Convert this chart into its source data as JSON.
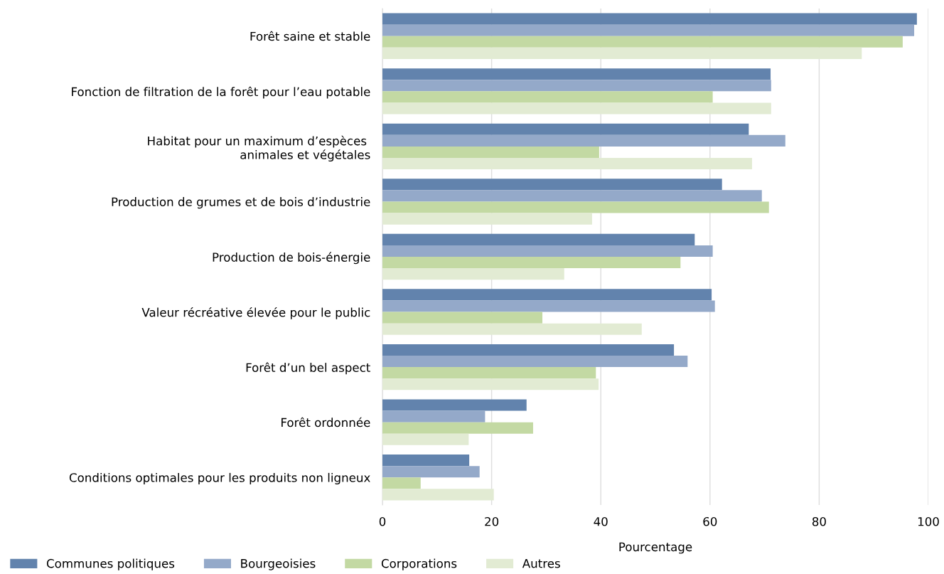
{
  "chart_data": {
    "type": "bar",
    "orientation": "horizontal",
    "xlabel": "Pourcentage",
    "categories": [
      "Forêt saine et stable",
      "Fonction de filtration de la forêt pour l’eau potable",
      "Habitat pour un maximum d’espèces \nanimales et végétales",
      "Production de grumes et de bois d’industrie",
      "Production de bois-énergie",
      "Valeur récréative élevée pour le public",
      "Forêt d’un bel aspect",
      "Forêt ordonnée",
      "Conditions optimales pour les produits non ligneux"
    ],
    "series": [
      {
        "name": "Communes politiques",
        "color": "#6283ad",
        "values": [
          97.9,
          71.1,
          67.1,
          62.2,
          57.2,
          60.3,
          53.4,
          26.4,
          15.9
        ]
      },
      {
        "name": "Bourgeoisies",
        "color": "#94a9c9",
        "values": [
          97.4,
          71.2,
          73.8,
          69.5,
          60.5,
          60.9,
          55.9,
          18.8,
          17.8
        ]
      },
      {
        "name": "Corporations",
        "color": "#c3d9a3",
        "values": [
          95.3,
          60.5,
          39.7,
          70.8,
          54.6,
          29.3,
          39.1,
          27.6,
          7.0
        ]
      },
      {
        "name": "Autres",
        "color": "#e2ebd3",
        "values": [
          87.8,
          71.2,
          67.7,
          38.4,
          33.3,
          47.5,
          39.6,
          15.8,
          20.4
        ]
      }
    ],
    "xlim": [
      0,
      100
    ],
    "xticks": [
      0,
      20,
      40,
      60,
      80,
      100
    ],
    "grid": "x",
    "legend": "bottom left"
  }
}
